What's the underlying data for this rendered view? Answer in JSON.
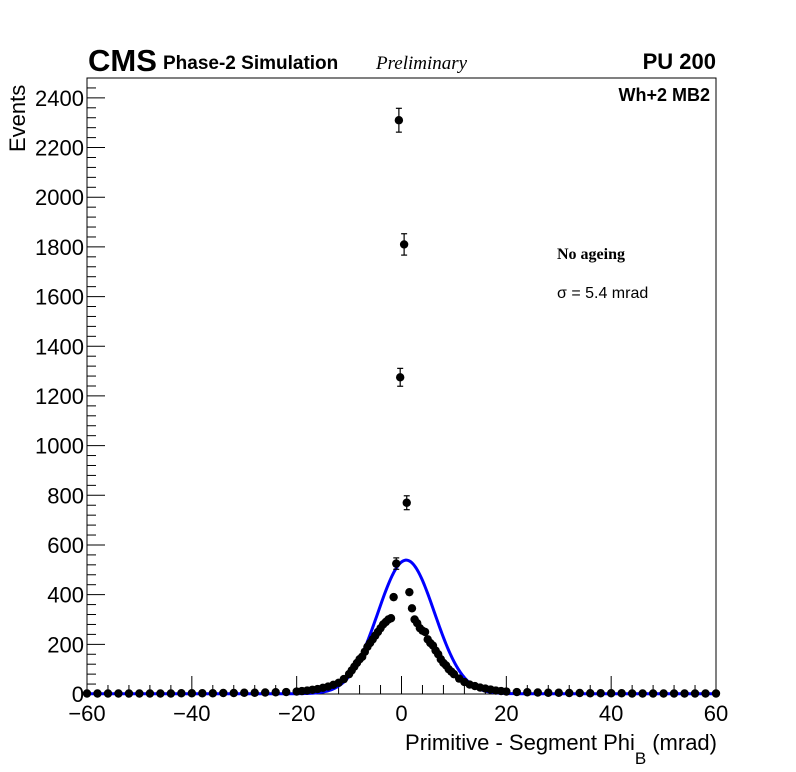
{
  "header": {
    "cms": "CMS",
    "simulation": "Phase-2 Simulation",
    "preliminary": "Preliminary",
    "pileup": "PU 200"
  },
  "annotations": {
    "region": "Wh+2 MB2",
    "ageing": "No ageing",
    "sigma": "σ = 5.4 mrad"
  },
  "colors": {
    "data_points": "#000000",
    "fit_curve": "#0000ff",
    "frame": "#000000"
  },
  "chart_data": {
    "type": "scatter",
    "xlabel": "Primitive - Segment Phi",
    "xlabel_subscript": "B",
    "xlabel_unit": "(mrad)",
    "ylabel": "Events",
    "xlim": [
      -60,
      60
    ],
    "ylim": [
      0,
      2480
    ],
    "x_ticks": [
      -60,
      -40,
      -20,
      0,
      20,
      40,
      60
    ],
    "x_tick_labels": [
      "−60",
      "−40",
      "−20",
      "0",
      "20",
      "40",
      "60"
    ],
    "y_ticks": [
      0,
      200,
      400,
      600,
      800,
      1000,
      1200,
      1400,
      1600,
      1800,
      2000,
      2200,
      2400
    ],
    "y_tick_labels": [
      "0",
      "200",
      "400",
      "600",
      "800",
      "1000",
      "1200",
      "1400",
      "1600",
      "1800",
      "2000",
      "2200",
      "2400"
    ],
    "grid": false,
    "series": [
      {
        "kind": "points-with-errors",
        "points": [
          {
            "x": -60,
            "y": 2
          },
          {
            "x": -58,
            "y": 2
          },
          {
            "x": -56,
            "y": 2
          },
          {
            "x": -54,
            "y": 2
          },
          {
            "x": -52,
            "y": 2
          },
          {
            "x": -50,
            "y": 2
          },
          {
            "x": -48,
            "y": 2
          },
          {
            "x": -46,
            "y": 2
          },
          {
            "x": -44,
            "y": 2
          },
          {
            "x": -42,
            "y": 3
          },
          {
            "x": -40,
            "y": 3
          },
          {
            "x": -38,
            "y": 3
          },
          {
            "x": -36,
            "y": 3
          },
          {
            "x": -34,
            "y": 4
          },
          {
            "x": -32,
            "y": 4
          },
          {
            "x": -30,
            "y": 5
          },
          {
            "x": -28,
            "y": 5
          },
          {
            "x": -26,
            "y": 6
          },
          {
            "x": -24,
            "y": 7
          },
          {
            "x": -22,
            "y": 8
          },
          {
            "x": -20,
            "y": 10
          },
          {
            "x": -19,
            "y": 12
          },
          {
            "x": -18,
            "y": 14
          },
          {
            "x": -17,
            "y": 17
          },
          {
            "x": -16,
            "y": 20
          },
          {
            "x": -15,
            "y": 25
          },
          {
            "x": -14,
            "y": 30
          },
          {
            "x": -13,
            "y": 37
          },
          {
            "x": -12,
            "y": 45
          },
          {
            "x": -11,
            "y": 60
          },
          {
            "x": -10,
            "y": 80
          },
          {
            "x": -9.5,
            "y": 95
          },
          {
            "x": -9,
            "y": 110
          },
          {
            "x": -8.5,
            "y": 125
          },
          {
            "x": -8,
            "y": 140
          },
          {
            "x": -7.5,
            "y": 150
          },
          {
            "x": -7,
            "y": 170
          },
          {
            "x": -6.5,
            "y": 190
          },
          {
            "x": -6,
            "y": 205
          },
          {
            "x": -5.5,
            "y": 220
          },
          {
            "x": -5,
            "y": 235
          },
          {
            "x": -4.5,
            "y": 250
          },
          {
            "x": -4,
            "y": 265
          },
          {
            "x": -3.5,
            "y": 280
          },
          {
            "x": -3,
            "y": 290
          },
          {
            "x": -2.5,
            "y": 300
          },
          {
            "x": -2,
            "y": 305
          },
          {
            "x": -1.5,
            "y": 390
          },
          {
            "x": -1,
            "y": 525
          },
          {
            "x": -0.5,
            "y": 2310
          },
          {
            "x": 0.5,
            "y": 1810
          },
          {
            "x": -0.25,
            "y": 1275
          },
          {
            "x": 1,
            "y": 770
          },
          {
            "x": 1.5,
            "y": 410
          },
          {
            "x": 2,
            "y": 345
          },
          {
            "x": 2.5,
            "y": 300
          },
          {
            "x": 3,
            "y": 285
          },
          {
            "x": 3.5,
            "y": 265
          },
          {
            "x": 4,
            "y": 255
          },
          {
            "x": 4.5,
            "y": 250
          },
          {
            "x": 5,
            "y": 220
          },
          {
            "x": 5.5,
            "y": 205
          },
          {
            "x": 6,
            "y": 195
          },
          {
            "x": 6.5,
            "y": 175
          },
          {
            "x": 7,
            "y": 160
          },
          {
            "x": 7.5,
            "y": 140
          },
          {
            "x": 8,
            "y": 125
          },
          {
            "x": 8.5,
            "y": 115
          },
          {
            "x": 9,
            "y": 100
          },
          {
            "x": 9.5,
            "y": 90
          },
          {
            "x": 10,
            "y": 80
          },
          {
            "x": 11,
            "y": 62
          },
          {
            "x": 12,
            "y": 48
          },
          {
            "x": 13,
            "y": 38
          },
          {
            "x": 14,
            "y": 32
          },
          {
            "x": 15,
            "y": 26
          },
          {
            "x": 16,
            "y": 22
          },
          {
            "x": 17,
            "y": 18
          },
          {
            "x": 18,
            "y": 14
          },
          {
            "x": 19,
            "y": 12
          },
          {
            "x": 20,
            "y": 10
          },
          {
            "x": 22,
            "y": 8
          },
          {
            "x": 24,
            "y": 7
          },
          {
            "x": 26,
            "y": 6
          },
          {
            "x": 28,
            "y": 5
          },
          {
            "x": 30,
            "y": 5
          },
          {
            "x": 32,
            "y": 4
          },
          {
            "x": 34,
            "y": 4
          },
          {
            "x": 36,
            "y": 3
          },
          {
            "x": 38,
            "y": 3
          },
          {
            "x": 40,
            "y": 3
          },
          {
            "x": 42,
            "y": 3
          },
          {
            "x": 44,
            "y": 2
          },
          {
            "x": 46,
            "y": 2
          },
          {
            "x": 48,
            "y": 2
          },
          {
            "x": 50,
            "y": 2
          },
          {
            "x": 52,
            "y": 2
          },
          {
            "x": 54,
            "y": 2
          },
          {
            "x": 56,
            "y": 2
          },
          {
            "x": 58,
            "y": 2
          },
          {
            "x": 60,
            "y": 2
          }
        ],
        "error_bars": [
          {
            "x": -0.5,
            "y": 2310,
            "err": 48
          },
          {
            "x": 0.5,
            "y": 1810,
            "err": 43
          },
          {
            "x": -0.25,
            "y": 1275,
            "err": 36
          },
          {
            "x": 1,
            "y": 770,
            "err": 28
          },
          {
            "x": -1,
            "y": 525,
            "err": 23
          }
        ]
      },
      {
        "kind": "gaussian-fit",
        "amplitude": 538,
        "mean": 0.9,
        "sigma": 5.4,
        "baseline": 1
      }
    ]
  }
}
